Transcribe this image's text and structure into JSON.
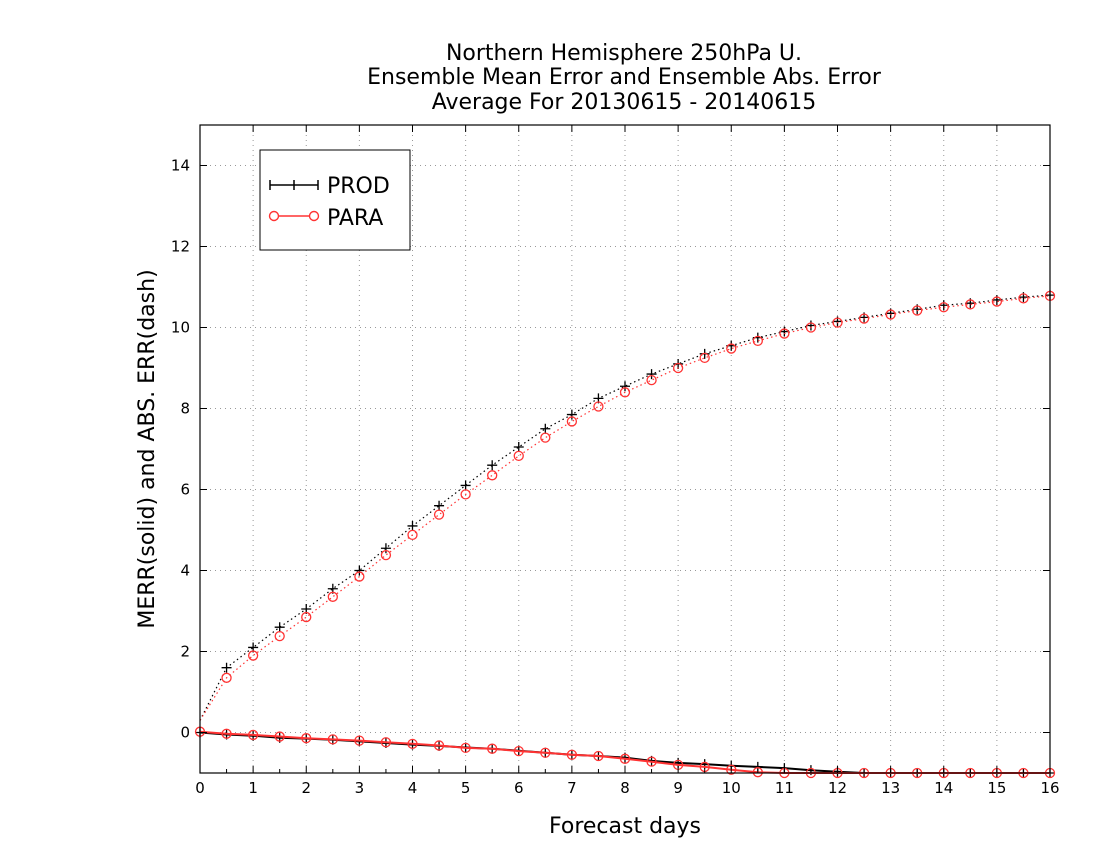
{
  "chart_data": {
    "type": "line",
    "title": [
      "Northern Hemisphere 250hPa U.",
      "Ensemble Mean Error and Ensemble Abs. Error",
      "Average For 20130615 - 20140615"
    ],
    "xlabel": "Forecast days",
    "ylabel": "MERR(solid) and ABS. ERR(dash)",
    "xlim": [
      0,
      16
    ],
    "ylim": [
      -1,
      15
    ],
    "x_ticks": [
      0,
      1,
      2,
      3,
      4,
      5,
      6,
      7,
      8,
      9,
      10,
      11,
      12,
      13,
      14,
      15,
      16
    ],
    "y_ticks": [
      0,
      2,
      4,
      6,
      8,
      10,
      12,
      14
    ],
    "grid": true,
    "legend_position": "top-left",
    "x": [
      0,
      0.5,
      1,
      1.5,
      2,
      2.5,
      3,
      3.5,
      4,
      4.5,
      5,
      5.5,
      6,
      6.5,
      7,
      7.5,
      8,
      8.5,
      9,
      9.5,
      10,
      10.5,
      11,
      11.5,
      12,
      12.5,
      13,
      13.5,
      14,
      14.5,
      15,
      15.5,
      16
    ],
    "series": [
      {
        "name": "PROD",
        "metric": "MERR",
        "line_style": "solid",
        "marker": "plus",
        "color": "#000000",
        "values": [
          0.0,
          -0.05,
          -0.08,
          -0.13,
          -0.15,
          -0.18,
          -0.22,
          -0.26,
          -0.3,
          -0.33,
          -0.37,
          -0.4,
          -0.45,
          -0.5,
          -0.55,
          -0.58,
          -0.62,
          -0.7,
          -0.75,
          -0.78,
          -0.82,
          -0.85,
          -0.88,
          -0.93,
          -0.97,
          -1.0,
          -1.0,
          -1.0,
          -1.0,
          -1.0,
          -1.0,
          -1.0,
          -1.0
        ]
      },
      {
        "name": "PARA",
        "metric": "MERR",
        "line_style": "solid",
        "marker": "circle",
        "color": "#ff3333",
        "values": [
          0.02,
          -0.03,
          -0.06,
          -0.1,
          -0.14,
          -0.17,
          -0.2,
          -0.24,
          -0.28,
          -0.32,
          -0.38,
          -0.4,
          -0.46,
          -0.5,
          -0.55,
          -0.58,
          -0.65,
          -0.72,
          -0.8,
          -0.85,
          -0.92,
          -0.98,
          -1.0,
          -1.0,
          -1.0,
          -1.0,
          -1.0,
          -1.0,
          -1.0,
          -1.0,
          -1.0,
          -1.0,
          -1.0
        ]
      },
      {
        "name": "PROD",
        "metric": "ABS. ERR",
        "line_style": "dotted",
        "marker": "plus",
        "color": "#000000",
        "values": [
          0.3,
          1.6,
          2.1,
          2.6,
          3.05,
          3.55,
          4.0,
          4.55,
          5.1,
          5.6,
          6.1,
          6.6,
          7.05,
          7.5,
          7.85,
          8.25,
          8.55,
          8.85,
          9.1,
          9.35,
          9.55,
          9.75,
          9.9,
          10.05,
          10.15,
          10.25,
          10.35,
          10.45,
          10.55,
          10.6,
          10.68,
          10.75,
          10.8
        ]
      },
      {
        "name": "PARA",
        "metric": "ABS. ERR",
        "line_style": "dotted",
        "marker": "circle",
        "color": "#ff3333",
        "values": [
          0.3,
          1.35,
          1.9,
          2.38,
          2.85,
          3.35,
          3.85,
          4.38,
          4.88,
          5.38,
          5.88,
          6.35,
          6.83,
          7.28,
          7.68,
          8.05,
          8.4,
          8.7,
          9.0,
          9.25,
          9.48,
          9.67,
          9.85,
          10.0,
          10.12,
          10.22,
          10.32,
          10.42,
          10.5,
          10.57,
          10.64,
          10.72,
          10.78
        ]
      }
    ]
  }
}
